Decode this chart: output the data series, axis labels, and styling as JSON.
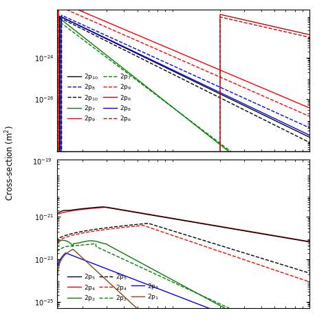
{
  "top_legend": [
    {
      "label": "2p$_{10}$",
      "color": "#000000",
      "ls": "solid"
    },
    {
      "label": "2p$_{10}$",
      "color": "#000000",
      "ls": "dashed"
    },
    {
      "label": "2p$_{9}$",
      "color": "#ff0000",
      "ls": "solid"
    },
    {
      "label": "2p$_{9}$",
      "color": "#ff0000",
      "ls": "dashed"
    },
    {
      "label": "2p$_{8}$",
      "color": "#0000ff",
      "ls": "solid"
    },
    {
      "label": "2p$_{8}$",
      "color": "#0000cc",
      "ls": "dashed"
    },
    {
      "label": "2p$_{7}$",
      "color": "#008000",
      "ls": "solid"
    },
    {
      "label": "2p$_{7}$",
      "color": "#008000",
      "ls": "dashed"
    },
    {
      "label": "2p$_{6}$",
      "color": "#cc0000",
      "ls": "solid"
    },
    {
      "label": "2p$_{6}$",
      "color": "#cc0000",
      "ls": "dashed"
    }
  ],
  "bot_legend": [
    {
      "label": "2p$_{5}$",
      "color": "#000000",
      "ls": "solid"
    },
    {
      "label": "2p$_{4}$",
      "color": "#ff0000",
      "ls": "solid"
    },
    {
      "label": "2p$_{2}$",
      "color": "#008000",
      "ls": "solid"
    },
    {
      "label": "2p$_{5}$",
      "color": "#000000",
      "ls": "dashed"
    },
    {
      "label": "2p$_{4}$",
      "color": "#ff0000",
      "ls": "dashed"
    },
    {
      "label": "2p$_{2}$",
      "color": "#008000",
      "ls": "dashed"
    },
    {
      "label": "2p$_{3}$",
      "color": "#0000ff",
      "ls": "solid"
    },
    {
      "label": "2p$_{1}$",
      "color": "#8B4513",
      "ls": "solid"
    }
  ],
  "ylabel": "Cross-section (m$^2$)",
  "xlim": [
    13,
    900
  ]
}
